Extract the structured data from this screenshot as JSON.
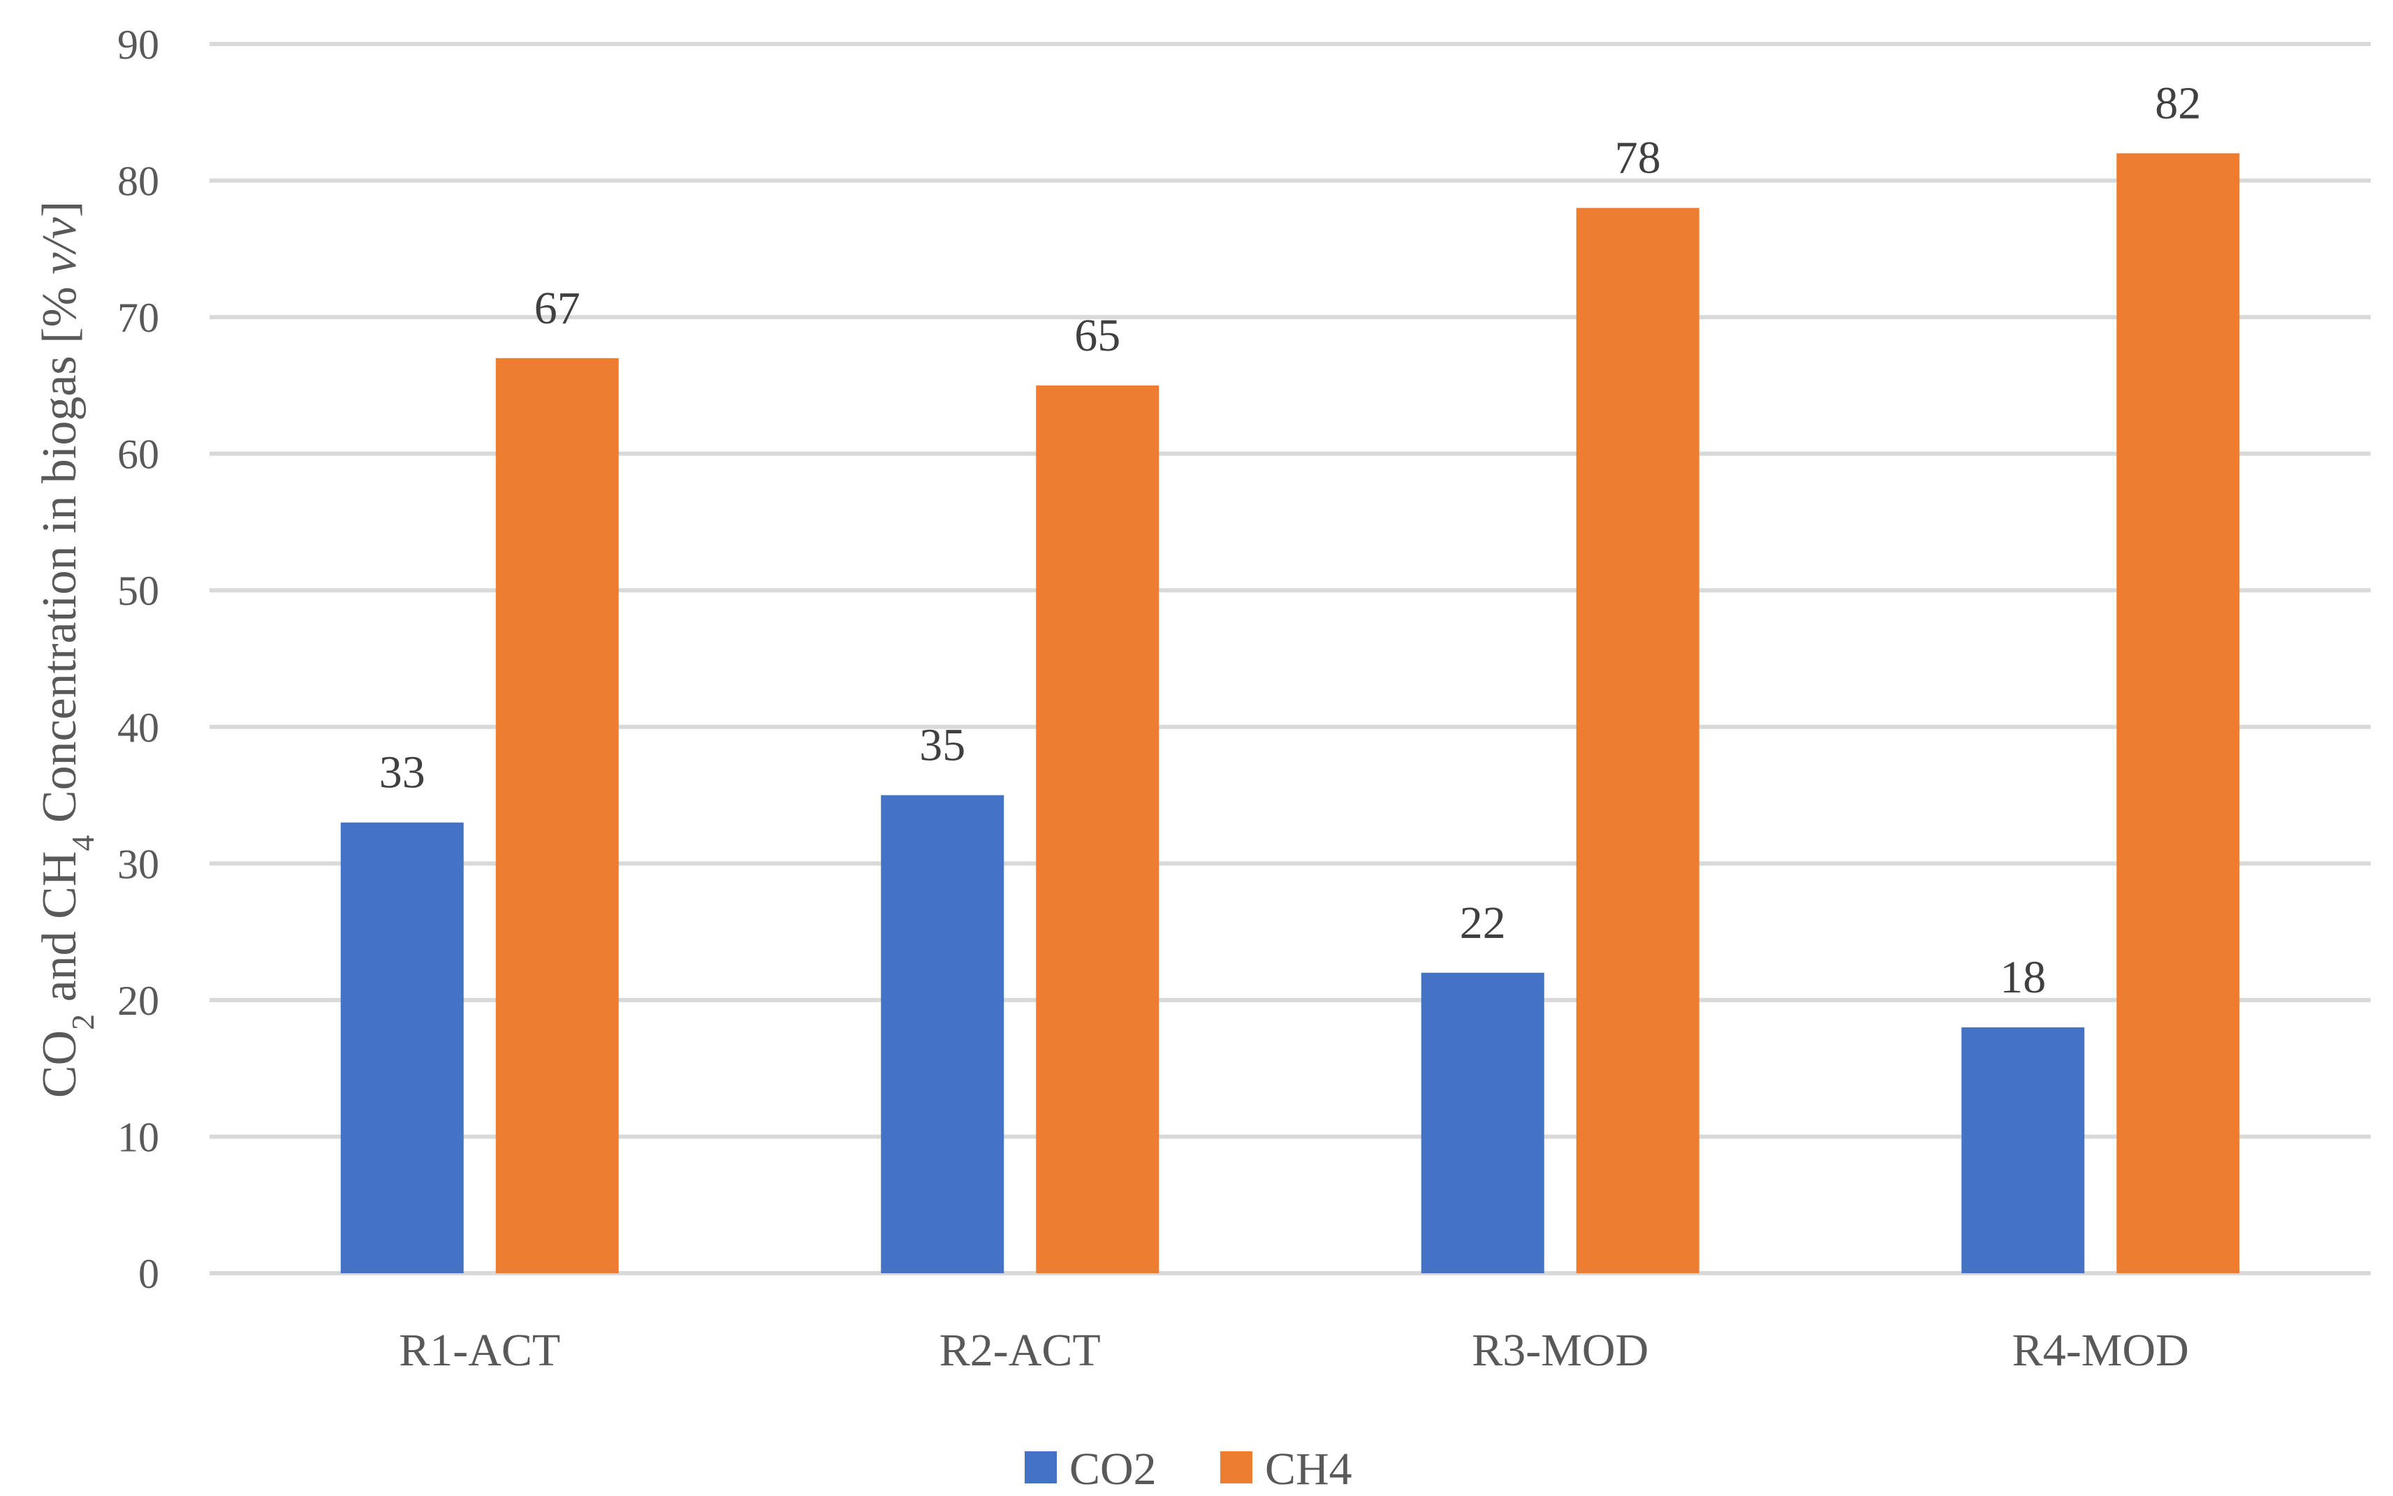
{
  "chart_data": {
    "type": "bar",
    "categories": [
      "R1-ACT",
      "R2-ACT",
      "R3-MOD",
      "R4-MOD"
    ],
    "series": [
      {
        "name": "CO2",
        "color": "#4472c4",
        "values": [
          33,
          35,
          22,
          18
        ],
        "labels": [
          "33",
          "35",
          "22",
          "18"
        ]
      },
      {
        "name": "CH4",
        "color": "#ed7d31",
        "values": [
          67,
          65,
          78,
          82
        ],
        "labels": [
          "67",
          "65",
          "78",
          "82"
        ]
      }
    ],
    "ylim": [
      0,
      90
    ],
    "yticks": [
      0,
      10,
      20,
      30,
      40,
      50,
      60,
      70,
      80,
      90
    ],
    "ylabel": {
      "part1": "CO",
      "sub1": "2",
      "part2": " and CH",
      "sub2": "4",
      "part3": " Concentration in biogas [% ",
      "italic": "v/v",
      "part4": "]"
    },
    "xlabel": "",
    "grid": true,
    "legend_position": "bottom"
  }
}
